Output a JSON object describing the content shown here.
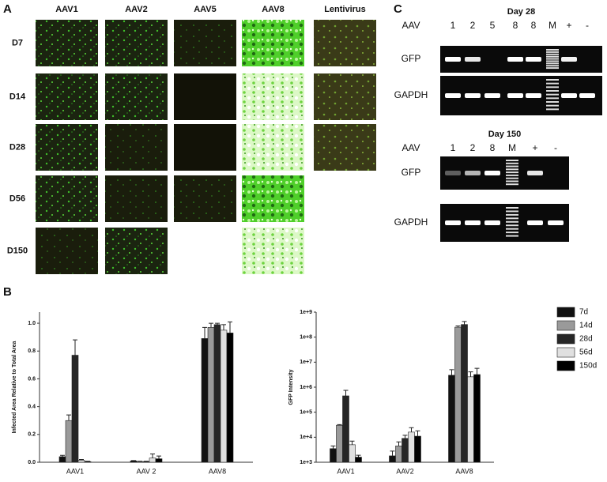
{
  "panel_a": {
    "label": "A",
    "columns": [
      "AAV1",
      "AAV2",
      "AAV5",
      "AAV8",
      "Lentivirus"
    ],
    "rows": [
      "D7",
      "D14",
      "D28",
      "D56",
      "D150"
    ]
  },
  "panel_b": {
    "label": "B"
  },
  "panel_c": {
    "label": "C",
    "day28": {
      "title": "Day 28",
      "lane_header": "AAV",
      "lanes": [
        "1",
        "2",
        "5",
        "8",
        "8",
        "M",
        "+",
        "-"
      ],
      "gels": [
        "GFP",
        "GAPDH"
      ]
    },
    "day150": {
      "title": "Day 150",
      "lane_header": "AAV",
      "lanes": [
        "1",
        "2",
        "8",
        "M",
        "+",
        "-"
      ],
      "gels": [
        "GFP",
        "GAPDH"
      ]
    }
  },
  "chart_data": [
    {
      "type": "bar",
      "ylabel": "Infected Area Relative to Total Area",
      "categories": [
        "AAV1",
        "AAV 2",
        "AAV8"
      ],
      "ylim": [
        0,
        1.08
      ],
      "yticks": [
        {
          "value": 0,
          "label": "0.0"
        },
        0.2,
        0.4,
        0.6,
        0.8,
        {
          "value": 1,
          "label": "1.0"
        }
      ],
      "series": [
        {
          "color": "#111111",
          "values": [
            0.04,
            0.01,
            0.89
          ],
          "errors": [
            0.01,
            0.002,
            0.08
          ]
        },
        {
          "color": "#9a9a9a",
          "values": [
            0.3,
            0.005,
            0.97
          ],
          "errors": [
            0.04,
            0.002,
            0.03
          ]
        },
        {
          "color": "#262626",
          "values": [
            0.77,
            0.005,
            0.99
          ],
          "errors": [
            0.11,
            0.002,
            0.01
          ]
        },
        {
          "color": "#e0e0e0",
          "values": [
            0.015,
            0.03,
            0.95
          ],
          "errors": [
            0.005,
            0.03,
            0.04
          ]
        },
        {
          "color": "#000000",
          "values": [
            0.005,
            0.025,
            0.93
          ],
          "errors": [
            0.002,
            0.02,
            0.08
          ]
        }
      ]
    },
    {
      "type": "bar",
      "ylabel": "GFP Intensity",
      "yscale": "log",
      "legend": "right",
      "categories": [
        "AAV1",
        "AAV2",
        "AAV8"
      ],
      "ylim": [
        1000,
        1000000000
      ],
      "yticks": [
        {
          "value": 1000,
          "label": "1e+3"
        },
        {
          "value": 10000,
          "label": "1e+4"
        },
        {
          "value": 100000,
          "label": "1e+5"
        },
        {
          "value": 1000000,
          "label": "1e+6"
        },
        {
          "value": 10000000,
          "label": "1e+7"
        },
        {
          "value": 100000000,
          "label": "1e+8"
        },
        {
          "value": 1000000000,
          "label": "1e+9"
        }
      ],
      "series": [
        {
          "name": "7d",
          "color": "#111111",
          "values": [
            3500,
            1800,
            3000000
          ],
          "errors": [
            1000,
            1000,
            2000000
          ]
        },
        {
          "name": "14d",
          "color": "#9a9a9a",
          "values": [
            30000,
            4500,
            250000000
          ],
          "errors": [
            2000,
            2000,
            30000000
          ]
        },
        {
          "name": "28d",
          "color": "#262626",
          "values": [
            450000,
            9000,
            320000000
          ],
          "errors": [
            300000,
            3000,
            100000000
          ]
        },
        {
          "name": "56d",
          "color": "#e0e0e0",
          "values": [
            5000,
            16000,
            2600000
          ],
          "errors": [
            2000,
            8000,
            1500000
          ]
        },
        {
          "name": "150d",
          "color": "#000000",
          "values": [
            1600,
            11000,
            3200000
          ],
          "errors": [
            300,
            7000,
            2500000
          ]
        }
      ]
    }
  ]
}
